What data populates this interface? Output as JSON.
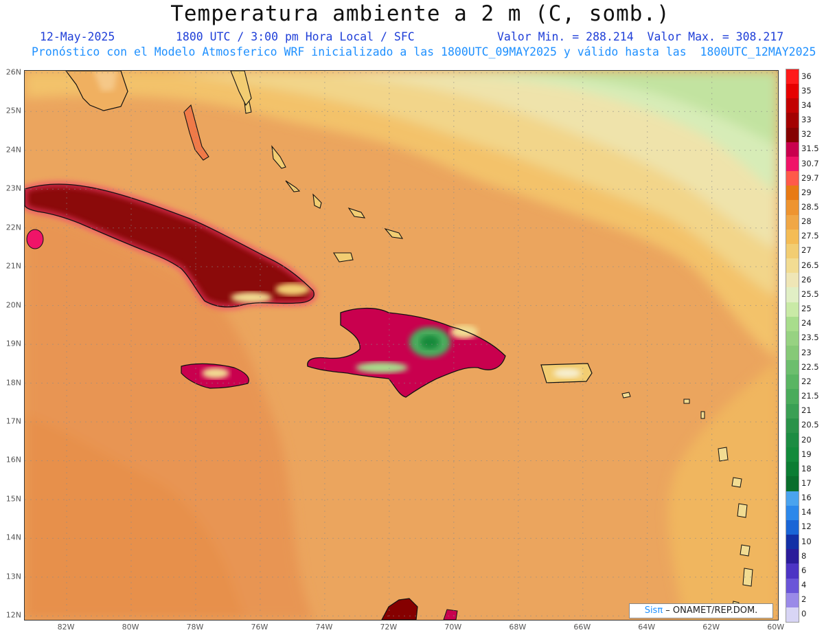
{
  "header": {
    "title": "Temperatura ambiente a 2 m (C, somb.)",
    "date": "12-May-2025",
    "time": "1800 UTC / 3:00 pm Hora Local / SFC",
    "min_max": "Valor Min. = 288.214  Valor Max. = 308.217",
    "model_info": "Pronóstico con el Modelo Atmosferico WRF inicializado a las 1800UTC_09MAY2025 y válido hasta las  1800UTC_12MAY2025"
  },
  "map": {
    "lat_labels": [
      "26N",
      "25N",
      "24N",
      "23N",
      "22N",
      "21N",
      "20N",
      "19N",
      "18N",
      "17N",
      "16N",
      "15N",
      "14N",
      "13N",
      "12N"
    ],
    "lon_labels": [
      "82W",
      "80W",
      "78W",
      "76W",
      "74W",
      "72W",
      "70W",
      "68W",
      "66W",
      "64W",
      "62W",
      "60W"
    ],
    "lat_range": [
      11.9,
      26.05
    ],
    "lon_range": [
      -83.3,
      -59.95
    ],
    "grid": "dotted"
  },
  "legend": {
    "labels": [
      "36",
      "35",
      "34",
      "33",
      "32",
      "31.5",
      "30.7",
      "29.7",
      "29",
      "28.5",
      "28",
      "27.5",
      "27",
      "26.5",
      "26",
      "25.5",
      "25",
      "24",
      "23.5",
      "23",
      "22.5",
      "22",
      "21.5",
      "21",
      "20.5",
      "20",
      "19",
      "18",
      "17",
      "16",
      "14",
      "12",
      "10",
      "8",
      "6",
      "4",
      "2",
      "0"
    ],
    "colors": [
      "#ff1a1a",
      "#e60000",
      "#c20000",
      "#a30000",
      "#850000",
      "#c9004e",
      "#f01468",
      "#ff5a4a",
      "#e87a14",
      "#ee9430",
      "#f0a746",
      "#f4bc55",
      "#f2cd72",
      "#f2dc92",
      "#efe6b6",
      "#e1efc5",
      "#c9eaa6",
      "#a8dd8c",
      "#97d282",
      "#86c977",
      "#6cbe6d",
      "#5ab563",
      "#4aab5b",
      "#3a9f54",
      "#2a9249",
      "#1c8c42",
      "#128a3b",
      "#0c7d33",
      "#0a6e2c",
      "#4aa3ee",
      "#2c88ea",
      "#1a65d6",
      "#1330a6",
      "#2b1c9a",
      "#4c34c4",
      "#6a55d8",
      "#9a8ae8",
      "#d8d5f5"
    ]
  },
  "credit": {
    "brand": "Sisπ",
    "text": " – ONAMET/REP.DOM."
  }
}
